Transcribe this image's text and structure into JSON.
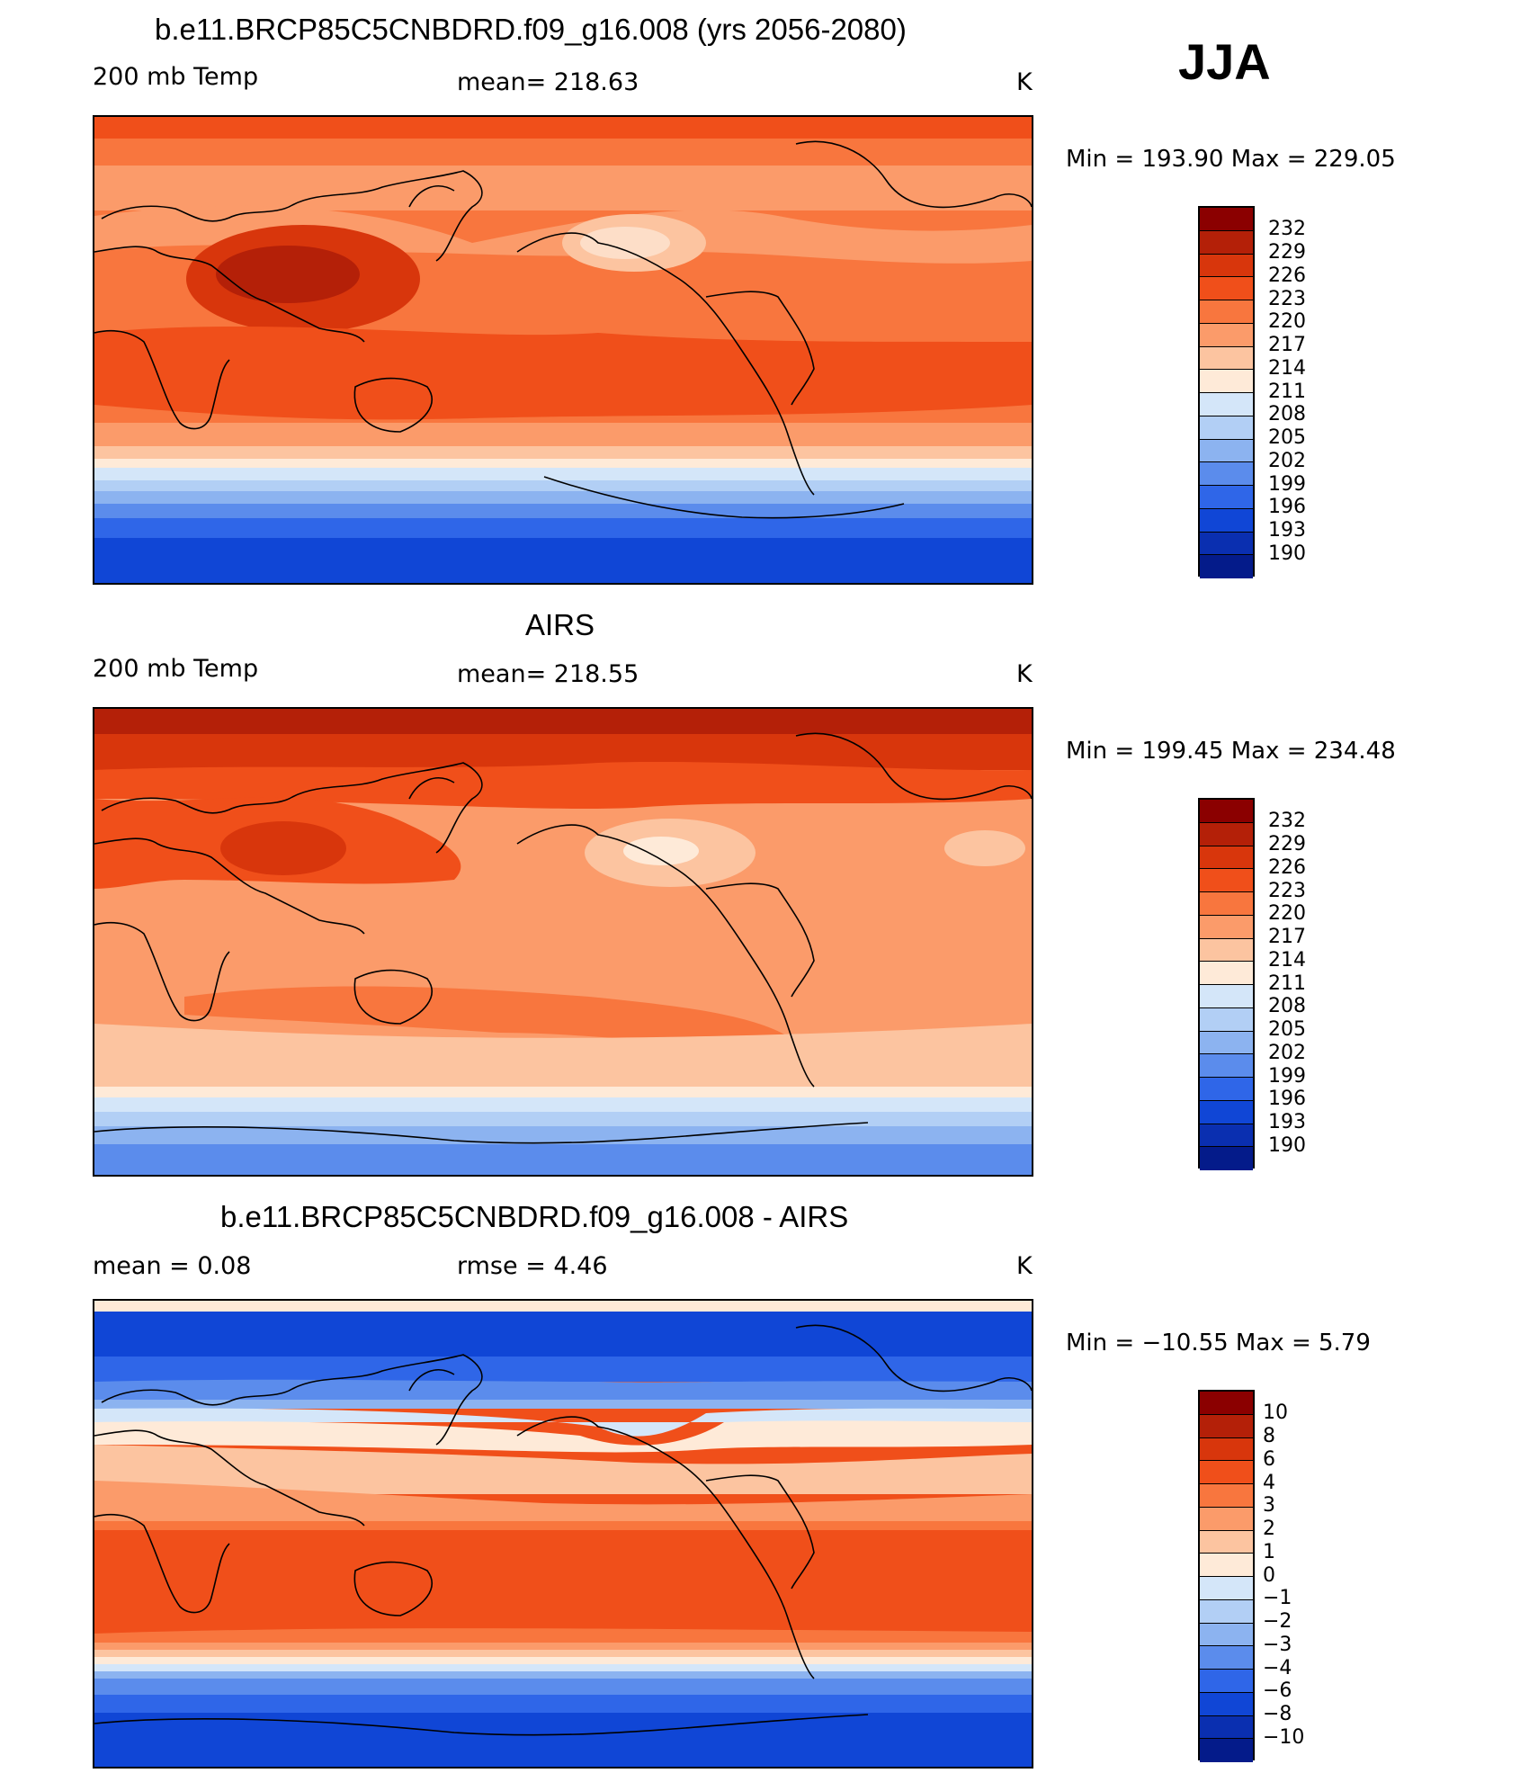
{
  "season": "JJA",
  "panels": [
    {
      "id": "model",
      "title": "b.e11.BRCP85C5CNBDRD.f09_g16.008 (yrs 2056-2080)",
      "left_label": "200 mb Temp",
      "center_label": "mean=  218.63",
      "units": "K",
      "minmax": "Min  =  193.90  Max  =  229.05",
      "colorbar_labels": [
        "232",
        "229",
        "226",
        "223",
        "220",
        "217",
        "214",
        "211",
        "208",
        "205",
        "202",
        "199",
        "196",
        "193",
        "190"
      ]
    },
    {
      "id": "obs",
      "title": "AIRS",
      "left_label": "200 mb Temp",
      "center_label": "mean=  218.55",
      "units": "K",
      "minmax": "Min  =  199.45  Max  =  234.48",
      "colorbar_labels": [
        "232",
        "229",
        "226",
        "223",
        "220",
        "217",
        "214",
        "211",
        "208",
        "205",
        "202",
        "199",
        "196",
        "193",
        "190"
      ]
    },
    {
      "id": "diff",
      "title": "b.e11.BRCP85C5CNBDRD.f09_g16.008 - AIRS",
      "left_label": "mean  =     0.08",
      "center_label": "rmse  =     4.46",
      "units": "K",
      "minmax": "Min  =  −10.55  Max  =     5.79",
      "colorbar_labels": [
        "10",
        "8",
        "6",
        "4",
        "3",
        "2",
        "1",
        "0",
        "−1",
        "−2",
        "−3",
        "−4",
        "−6",
        "−8",
        "−10"
      ]
    }
  ],
  "colors": {
    "palette": [
      "#8b0000",
      "#b42008",
      "#d8360c",
      "#f04f1a",
      "#f8763e",
      "#fb9b6a",
      "#fcc4a0",
      "#feead8",
      "#d4e6f9",
      "#b2cff5",
      "#8cb3f0",
      "#5b8cec",
      "#2f66e8",
      "#1046d6",
      "#0a2fb0",
      "#041b8a"
    ]
  }
}
